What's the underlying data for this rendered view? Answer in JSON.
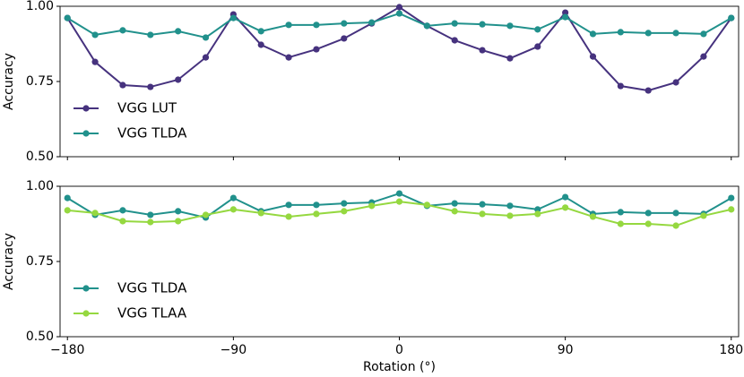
{
  "chart_data": [
    {
      "type": "line",
      "ylabel": "Accuracy",
      "x": [
        -180,
        -165,
        -150,
        -135,
        -120,
        -105,
        -90,
        -75,
        -60,
        -45,
        -30,
        -15,
        0,
        15,
        30,
        45,
        60,
        75,
        90,
        105,
        120,
        135,
        150,
        165,
        180
      ],
      "series": [
        {
          "name": "VGG LUT",
          "color": "#46327e",
          "values": [
            0.961,
            0.815,
            0.738,
            0.732,
            0.756,
            0.83,
            0.973,
            0.872,
            0.83,
            0.857,
            0.893,
            0.943,
            0.997,
            0.935,
            0.887,
            0.854,
            0.827,
            0.866,
            0.979,
            0.833,
            0.735,
            0.72,
            0.747,
            0.833,
            0.961
          ]
        },
        {
          "name": "VGG TLDA",
          "color": "#21918c",
          "values": [
            0.961,
            0.905,
            0.92,
            0.905,
            0.917,
            0.896,
            0.961,
            0.917,
            0.938,
            0.938,
            0.943,
            0.946,
            0.976,
            0.935,
            0.943,
            0.94,
            0.935,
            0.923,
            0.964,
            0.908,
            0.914,
            0.911,
            0.911,
            0.908,
            0.961
          ]
        }
      ],
      "xlim": [
        -184,
        184
      ],
      "xticks": [
        -180,
        -90,
        0,
        90,
        180
      ],
      "ylim": [
        0.5,
        1.0
      ],
      "yticks": [
        {
          "value": 0.5,
          "label": "0.50"
        },
        {
          "value": 0.75,
          "label": "0.75"
        },
        {
          "value": 1.0,
          "label": "1.00"
        }
      ],
      "legend": "lower left"
    },
    {
      "type": "line",
      "ylabel": "Accuracy",
      "xlabel": "Rotation (°)",
      "x": [
        -180,
        -165,
        -150,
        -135,
        -120,
        -105,
        -90,
        -75,
        -60,
        -45,
        -30,
        -15,
        0,
        15,
        30,
        45,
        60,
        75,
        90,
        105,
        120,
        135,
        150,
        165,
        180
      ],
      "series": [
        {
          "name": "VGG TLDA",
          "color": "#21918c",
          "values": [
            0.961,
            0.905,
            0.92,
            0.905,
            0.917,
            0.896,
            0.961,
            0.917,
            0.938,
            0.938,
            0.943,
            0.946,
            0.976,
            0.935,
            0.943,
            0.94,
            0.935,
            0.923,
            0.964,
            0.908,
            0.914,
            0.911,
            0.911,
            0.908,
            0.961
          ]
        },
        {
          "name": "VGG TLAA",
          "color": "#95d840",
          "values": [
            0.92,
            0.911,
            0.884,
            0.881,
            0.884,
            0.905,
            0.923,
            0.911,
            0.899,
            0.908,
            0.917,
            0.935,
            0.949,
            0.938,
            0.917,
            0.908,
            0.902,
            0.908,
            0.929,
            0.899,
            0.875,
            0.875,
            0.869,
            0.902,
            0.923
          ]
        }
      ],
      "xlim": [
        -184,
        184
      ],
      "xticks": [
        {
          "value": -180,
          "label": "−180"
        },
        {
          "value": -90,
          "label": "−90"
        },
        0,
        90,
        180
      ],
      "ylim": [
        0.5,
        1.0
      ],
      "yticks": [
        {
          "value": 0.5,
          "label": "0.50"
        },
        {
          "value": 0.75,
          "label": "0.75"
        },
        {
          "value": 1.0,
          "label": "1.00"
        }
      ],
      "legend": "lower left"
    }
  ]
}
